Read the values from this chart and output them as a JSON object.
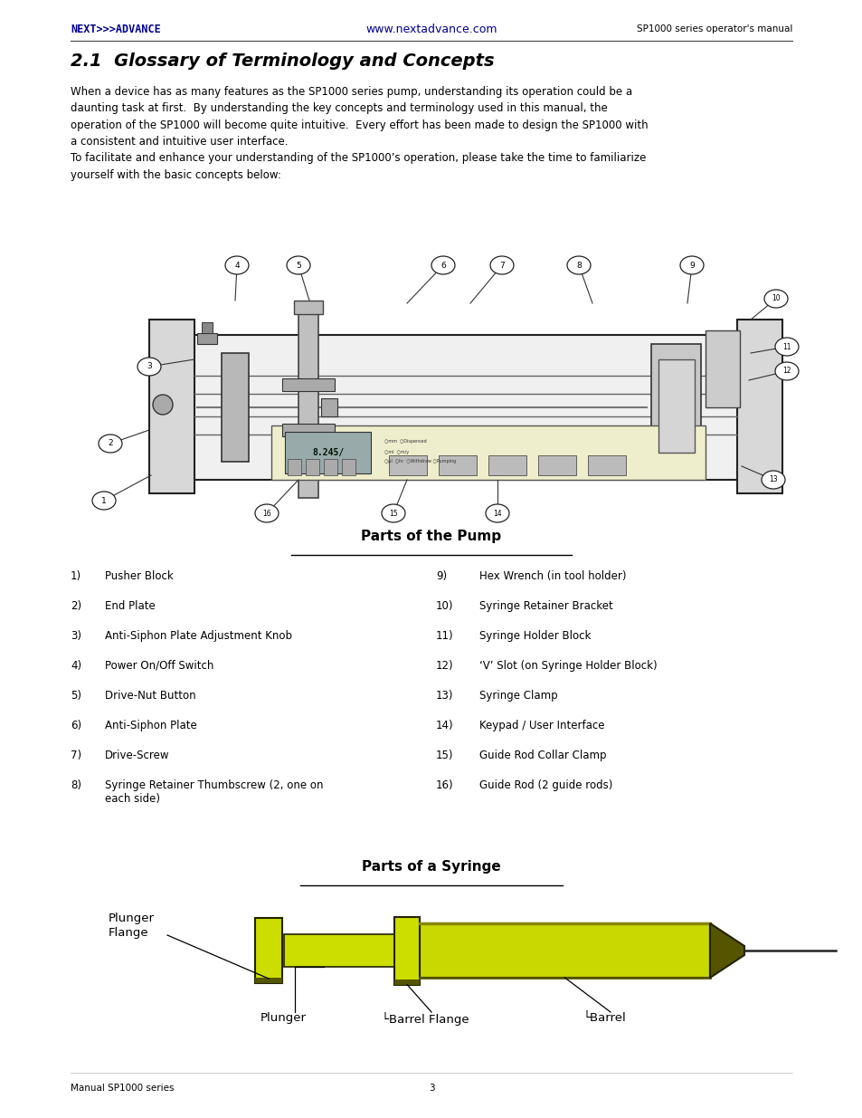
{
  "page_width": 9.54,
  "page_height": 12.35,
  "bg_color": "#ffffff",
  "header_logo": "NEXT>>>ADVANCE",
  "header_url": "www.nextadvance.com",
  "header_right": "SP1000 series operator's manual",
  "header_logo_color": "#00008B",
  "header_url_color": "#00008B",
  "section_title": "2.1  Glossary of Terminology and Concepts",
  "body_text1": "When a device has as many features as the SP1000 series pump, understanding its operation could be a\ndaunting task at first.  By understanding the key concepts and terminology used in this manual, the\noperation of the SP1000 will become quite intuitive.  Every effort has been made to design the SP1000 with\na consistent and intuitive user interface.",
  "body_text2": "To facilitate and enhance your understanding of the SP1000’s operation, please take the time to familiarize\nyourself with the basic concepts below:",
  "pump_title": "Parts of the Pump",
  "pump_items_left": [
    [
      "1)",
      "Pusher Block"
    ],
    [
      "2)",
      "End Plate"
    ],
    [
      "3)",
      "Anti-Siphon Plate Adjustment Knob"
    ],
    [
      "4)",
      "Power On/Off Switch"
    ],
    [
      "5)",
      "Drive-Nut Button"
    ],
    [
      "6)",
      "Anti-Siphon Plate"
    ],
    [
      "7)",
      "Drive-Screw"
    ],
    [
      "8)",
      "Syringe Retainer Thumbscrew (2, one on\neach side)"
    ]
  ],
  "pump_items_right": [
    [
      "9)",
      "Hex Wrench (in tool holder)"
    ],
    [
      "10)",
      "Syringe Retainer Bracket"
    ],
    [
      "11)",
      "Syringe Holder Block"
    ],
    [
      "12)",
      "‘V’ Slot (on Syringe Holder Block)"
    ],
    [
      "13)",
      "Syringe Clamp"
    ],
    [
      "14)",
      "Keypad / User Interface"
    ],
    [
      "15)",
      "Guide Rod Collar Clamp"
    ],
    [
      "16)",
      "Guide Rod (2 guide rods)"
    ]
  ],
  "syringe_title": "Parts of a Syringe",
  "footer_left": "Manual SP1000 series",
  "footer_center": "3",
  "text_color": "#000000",
  "syringe_color_main": "#ccdd00",
  "syringe_color_barrel": "#c8d800",
  "syringe_color_dark": "#555500",
  "syringe_color_outline": "#222200",
  "syringe_color_shadow": "#888800"
}
